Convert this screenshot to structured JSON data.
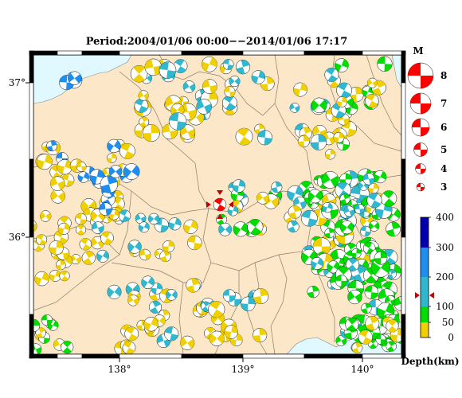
{
  "title": "Period:2004/01/06 00:00−−2014/01/06 17:17",
  "map": {
    "lon_ticks": [
      "138°",
      "139°",
      "140°"
    ],
    "lat_ticks": [
      "37°",
      "36°"
    ],
    "land_color": "#fce8c8",
    "sea_color": "#e0f8ff"
  },
  "magnitude_legend": {
    "title": "M",
    "items": [
      "8",
      "7",
      "6",
      "5",
      "4",
      "3"
    ],
    "color": "#ff0000"
  },
  "depth_legend": {
    "label": "Depth(km)",
    "ticks": [
      "400",
      "300",
      "200",
      "100",
      "50",
      "0"
    ],
    "bands": [
      {
        "from": 0,
        "to": 50,
        "color": "#f0d000"
      },
      {
        "from": 50,
        "to": 100,
        "color": "#00dd00"
      },
      {
        "from": 100,
        "to": 200,
        "color": "#30b8d0"
      },
      {
        "from": 200,
        "to": 300,
        "color": "#1e8ef0"
      },
      {
        "from": 300,
        "to": 400,
        "color": "#0000b0"
      }
    ]
  }
}
